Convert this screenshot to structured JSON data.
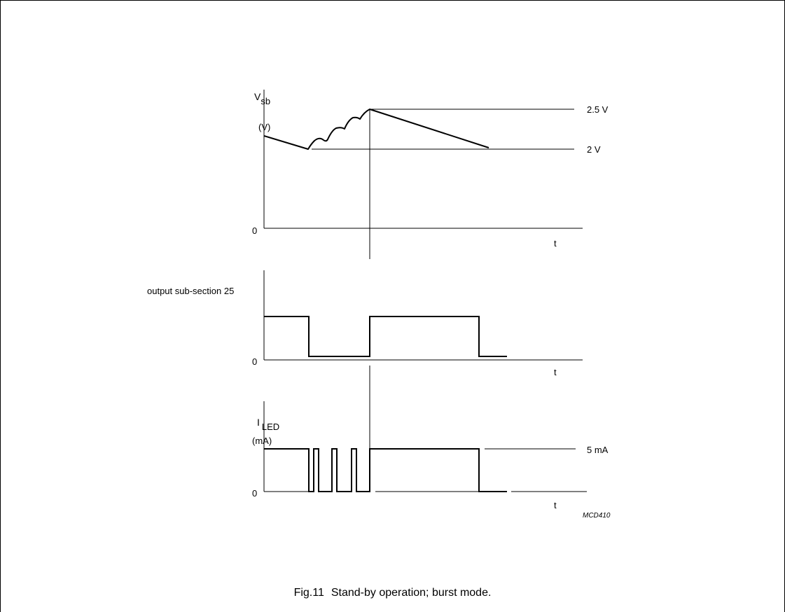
{
  "figure_id": "MCD410",
  "caption": {
    "number": "Fig.11",
    "text": "Stand-by operation; burst mode."
  },
  "panels": [
    {
      "id": "vsb",
      "signal": "V",
      "signal_subscript": "sb",
      "unit": "(V)",
      "zero_label": "0",
      "time_label": "t",
      "levels": [
        "2.5 V",
        "2 V"
      ]
    },
    {
      "id": "output",
      "signal": "output sub-section 25",
      "zero_label": "0",
      "time_label": "t"
    },
    {
      "id": "iled",
      "signal": "I",
      "signal_subscript": "LED",
      "unit": "(mA)",
      "zero_label": "0",
      "time_label": "t",
      "levels": [
        "5 mA"
      ]
    }
  ]
}
